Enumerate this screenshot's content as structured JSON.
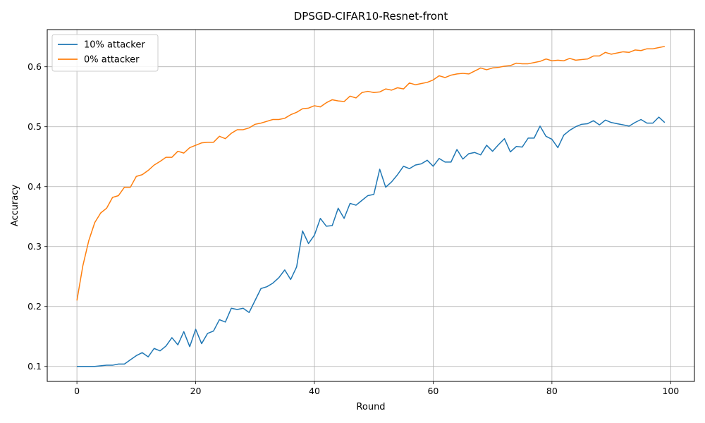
{
  "chart_data": {
    "type": "line",
    "title": "DPSGD-CIFAR10-Resnet-front",
    "xlabel": "Round",
    "ylabel": "Accuracy",
    "xlim": [
      -5,
      104
    ],
    "ylim": [
      0.075,
      0.662
    ],
    "xticks": [
      0,
      20,
      40,
      60,
      80,
      100
    ],
    "yticks": [
      0.1,
      0.2,
      0.3,
      0.4,
      0.5,
      0.6
    ],
    "xtick_labels": [
      "0",
      "20",
      "40",
      "60",
      "80",
      "100"
    ],
    "ytick_labels": [
      "0.1",
      "0.2",
      "0.3",
      "0.4",
      "0.5",
      "0.6"
    ],
    "grid": true,
    "legend_position": "top-left",
    "x": [
      0,
      1,
      2,
      3,
      4,
      5,
      6,
      7,
      8,
      9,
      10,
      11,
      12,
      13,
      14,
      15,
      16,
      17,
      18,
      19,
      20,
      21,
      22,
      23,
      24,
      25,
      26,
      27,
      28,
      29,
      30,
      31,
      32,
      33,
      34,
      35,
      36,
      37,
      38,
      39,
      40,
      41,
      42,
      43,
      44,
      45,
      46,
      47,
      48,
      49,
      50,
      51,
      52,
      53,
      54,
      55,
      56,
      57,
      58,
      59,
      60,
      61,
      62,
      63,
      64,
      65,
      66,
      67,
      68,
      69,
      70,
      71,
      72,
      73,
      74,
      75,
      76,
      77,
      78,
      79,
      80,
      81,
      82,
      83,
      84,
      85,
      86,
      87,
      88,
      89,
      90,
      91,
      92,
      93,
      94,
      95,
      96,
      97,
      98,
      99
    ],
    "series": [
      {
        "name": "10% attacker",
        "color": "#1f77b4",
        "values": [
          0.1,
          0.1,
          0.1,
          0.1,
          0.101,
          0.102,
          0.102,
          0.104,
          0.104,
          0.111,
          0.118,
          0.123,
          0.116,
          0.13,
          0.126,
          0.134,
          0.148,
          0.136,
          0.158,
          0.133,
          0.162,
          0.138,
          0.155,
          0.159,
          0.178,
          0.174,
          0.197,
          0.195,
          0.197,
          0.19,
          0.21,
          0.23,
          0.233,
          0.239,
          0.248,
          0.261,
          0.245,
          0.266,
          0.326,
          0.305,
          0.319,
          0.347,
          0.334,
          0.335,
          0.364,
          0.347,
          0.372,
          0.369,
          0.377,
          0.385,
          0.387,
          0.429,
          0.399,
          0.408,
          0.42,
          0.434,
          0.43,
          0.436,
          0.438,
          0.444,
          0.434,
          0.447,
          0.441,
          0.441,
          0.462,
          0.446,
          0.455,
          0.457,
          0.453,
          0.469,
          0.459,
          0.47,
          0.48,
          0.458,
          0.467,
          0.466,
          0.481,
          0.481,
          0.501,
          0.484,
          0.479,
          0.465,
          0.486,
          0.494,
          0.5,
          0.504,
          0.505,
          0.51,
          0.503,
          0.511,
          0.507,
          0.505,
          0.503,
          0.501,
          0.507,
          0.512,
          0.506,
          0.506,
          0.516,
          0.507
        ]
      },
      {
        "name": "0% attacker",
        "color": "#ff7f0e",
        "values": [
          0.21,
          0.268,
          0.31,
          0.34,
          0.356,
          0.364,
          0.382,
          0.385,
          0.399,
          0.399,
          0.417,
          0.42,
          0.427,
          0.436,
          0.442,
          0.449,
          0.449,
          0.459,
          0.456,
          0.465,
          0.469,
          0.473,
          0.474,
          0.474,
          0.484,
          0.48,
          0.489,
          0.495,
          0.495,
          0.498,
          0.504,
          0.506,
          0.509,
          0.512,
          0.512,
          0.514,
          0.52,
          0.524,
          0.53,
          0.531,
          0.535,
          0.533,
          0.54,
          0.545,
          0.543,
          0.542,
          0.551,
          0.548,
          0.557,
          0.559,
          0.557,
          0.558,
          0.563,
          0.561,
          0.565,
          0.563,
          0.573,
          0.57,
          0.572,
          0.574,
          0.578,
          0.585,
          0.582,
          0.586,
          0.588,
          0.589,
          0.588,
          0.593,
          0.598,
          0.595,
          0.598,
          0.599,
          0.601,
          0.602,
          0.606,
          0.605,
          0.605,
          0.607,
          0.609,
          0.613,
          0.61,
          0.611,
          0.61,
          0.614,
          0.611,
          0.612,
          0.613,
          0.618,
          0.618,
          0.624,
          0.621,
          0.623,
          0.625,
          0.624,
          0.628,
          0.627,
          0.63,
          0.63,
          0.632,
          0.634
        ]
      }
    ]
  }
}
